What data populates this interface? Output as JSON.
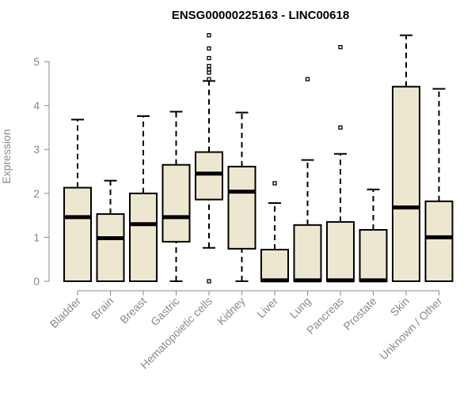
{
  "chart_data": {
    "type": "boxplot",
    "title": "ENSG00000225163 - LINC00618",
    "ylabel": "Expression",
    "xlabel": "",
    "ylim": [
      0,
      5.8
    ],
    "yticks": [
      0,
      1,
      2,
      3,
      4,
      5
    ],
    "grid": false,
    "box_color": "#ede7cf",
    "stroke_color": "#000000",
    "categories": [
      {
        "label": "Bladder",
        "min": 0,
        "q1": 0,
        "median": 1.46,
        "q3": 2.13,
        "max": 3.68,
        "outliers": []
      },
      {
        "label": "Brain",
        "min": 0,
        "q1": 0,
        "median": 0.98,
        "q3": 1.53,
        "max": 2.29,
        "outliers": []
      },
      {
        "label": "Breast",
        "min": 0,
        "q1": 0,
        "median": 1.3,
        "q3": 2.0,
        "max": 3.76,
        "outliers": []
      },
      {
        "label": "Gastric",
        "min": 0,
        "q1": 0.9,
        "median": 1.46,
        "q3": 2.65,
        "max": 3.86,
        "outliers": []
      },
      {
        "label": "Hematopoietic cells",
        "min": 0.76,
        "q1": 1.86,
        "median": 2.45,
        "q3": 2.94,
        "max": 4.56,
        "outliers": [
          0,
          4.6,
          4.75,
          4.82,
          4.9,
          5.08,
          5.3,
          5.6
        ]
      },
      {
        "label": "Kidney",
        "min": 0,
        "q1": 0.74,
        "median": 2.04,
        "q3": 2.61,
        "max": 3.84,
        "outliers": []
      },
      {
        "label": "Liver",
        "min": 0,
        "q1": 0,
        "median": 0.02,
        "q3": 0.72,
        "max": 1.78,
        "outliers": [
          2.23
        ]
      },
      {
        "label": "Lung",
        "min": 0,
        "q1": 0,
        "median": 0.02,
        "q3": 1.28,
        "max": 2.76,
        "outliers": [
          4.6
        ]
      },
      {
        "label": "Pancreas",
        "min": 0,
        "q1": 0,
        "median": 0.02,
        "q3": 1.35,
        "max": 2.9,
        "outliers": [
          3.5,
          5.33
        ]
      },
      {
        "label": "Prostate",
        "min": 0,
        "q1": 0,
        "median": 0.02,
        "q3": 1.17,
        "max": 2.09,
        "outliers": []
      },
      {
        "label": "Skin",
        "min": 0,
        "q1": 0,
        "median": 1.68,
        "q3": 4.43,
        "max": 5.6,
        "outliers": []
      },
      {
        "label": "Unknown / Other",
        "min": 0,
        "q1": 0,
        "median": 1.0,
        "q3": 1.82,
        "max": 4.38,
        "outliers": []
      }
    ]
  }
}
